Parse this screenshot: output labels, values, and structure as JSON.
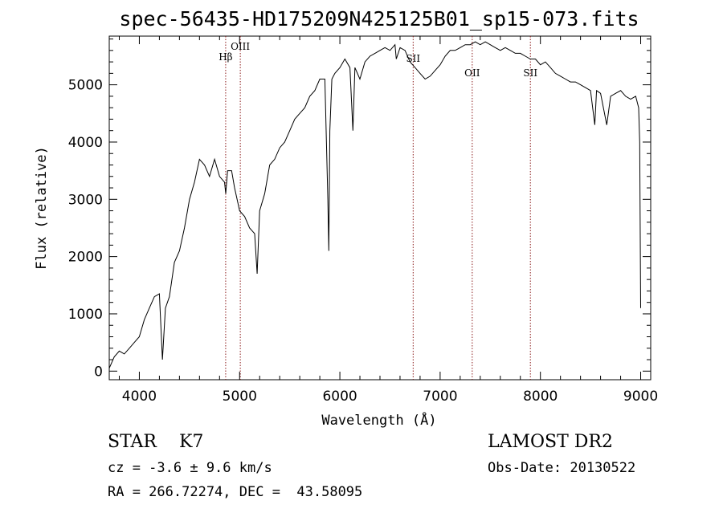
{
  "chart_data": {
    "type": "line",
    "title": "spec-56435-HD175209N425125B01_sp15-073.fits",
    "xlabel": "Wavelength (Å)",
    "ylabel": "Flux (relative)",
    "xlim": [
      3700,
      9100
    ],
    "ylim": [
      -150,
      5850
    ],
    "xticks": [
      4000,
      5000,
      6000,
      7000,
      8000,
      9000
    ],
    "yticks": [
      0,
      1000,
      2000,
      3000,
      4000,
      5000
    ],
    "grid": false,
    "line_color": "#000000",
    "marker_color": "#8b1a1a",
    "series": [
      {
        "x": [
          3700,
          3750,
          3800,
          3850,
          3900,
          3950,
          4000,
          4050,
          4100,
          4150,
          4200,
          4230,
          4260,
          4300,
          4350,
          4400,
          4450,
          4500,
          4550,
          4600,
          4650,
          4700,
          4750,
          4800,
          4850,
          4862,
          4880,
          4920,
          4950,
          5000,
          5050,
          5100,
          5150,
          5175,
          5200,
          5250,
          5300,
          5350,
          5400,
          5450,
          5500,
          5550,
          5600,
          5650,
          5700,
          5750,
          5800,
          5850,
          5880,
          5890,
          5900,
          5920,
          5950,
          6000,
          6050,
          6100,
          6130,
          6150,
          6200,
          6250,
          6300,
          6350,
          6400,
          6450,
          6500,
          6550,
          6563,
          6600,
          6650,
          6700,
          6750,
          6800,
          6850,
          6900,
          6950,
          7000,
          7050,
          7100,
          7150,
          7200,
          7250,
          7300,
          7350,
          7400,
          7450,
          7500,
          7550,
          7600,
          7650,
          7700,
          7750,
          7800,
          7850,
          7900,
          7950,
          8000,
          8050,
          8100,
          8150,
          8200,
          8250,
          8300,
          8350,
          8400,
          8450,
          8500,
          8542,
          8560,
          8600,
          8662,
          8700,
          8750,
          8800,
          8850,
          8900,
          8950,
          8980,
          8990,
          9000
        ],
        "y": [
          50,
          250,
          350,
          300,
          400,
          500,
          600,
          900,
          1100,
          1300,
          1350,
          200,
          1100,
          1300,
          1900,
          2100,
          2500,
          3000,
          3300,
          3700,
          3600,
          3400,
          3700,
          3400,
          3300,
          3100,
          3500,
          3500,
          3200,
          2800,
          2700,
          2500,
          2400,
          1700,
          2800,
          3100,
          3600,
          3700,
          3900,
          4000,
          4200,
          4400,
          4500,
          4600,
          4800,
          4900,
          5100,
          5100,
          3000,
          2100,
          4200,
          5100,
          5200,
          5300,
          5450,
          5300,
          4200,
          5300,
          5100,
          5400,
          5500,
          5550,
          5600,
          5650,
          5600,
          5700,
          5450,
          5650,
          5600,
          5400,
          5300,
          5200,
          5100,
          5150,
          5250,
          5350,
          5500,
          5600,
          5600,
          5650,
          5700,
          5700,
          5750,
          5700,
          5750,
          5700,
          5650,
          5600,
          5650,
          5600,
          5550,
          5550,
          5500,
          5450,
          5450,
          5350,
          5400,
          5300,
          5200,
          5150,
          5100,
          5050,
          5050,
          5000,
          4950,
          4900,
          4300,
          4900,
          4850,
          4300,
          4800,
          4850,
          4900,
          4800,
          4750,
          4800,
          4600,
          4000,
          1100
        ]
      }
    ],
    "line_markers": [
      {
        "label": "Hβ",
        "x": 4861
      },
      {
        "label": "OIII",
        "x": 5007
      },
      {
        "label": "SII",
        "x": 6731
      },
      {
        "label": "OII",
        "x": 7320
      },
      {
        "label": "SII",
        "x": 7900
      }
    ]
  },
  "info": {
    "class_line": "STAR    K7",
    "survey": "LAMOST DR2",
    "cz_line": "cz = -3.6 ± 9.6 km/s",
    "obs_date": "Obs-Date: 20130522",
    "radec_line": "RA = 266.72274, DEC =  43.58095"
  }
}
